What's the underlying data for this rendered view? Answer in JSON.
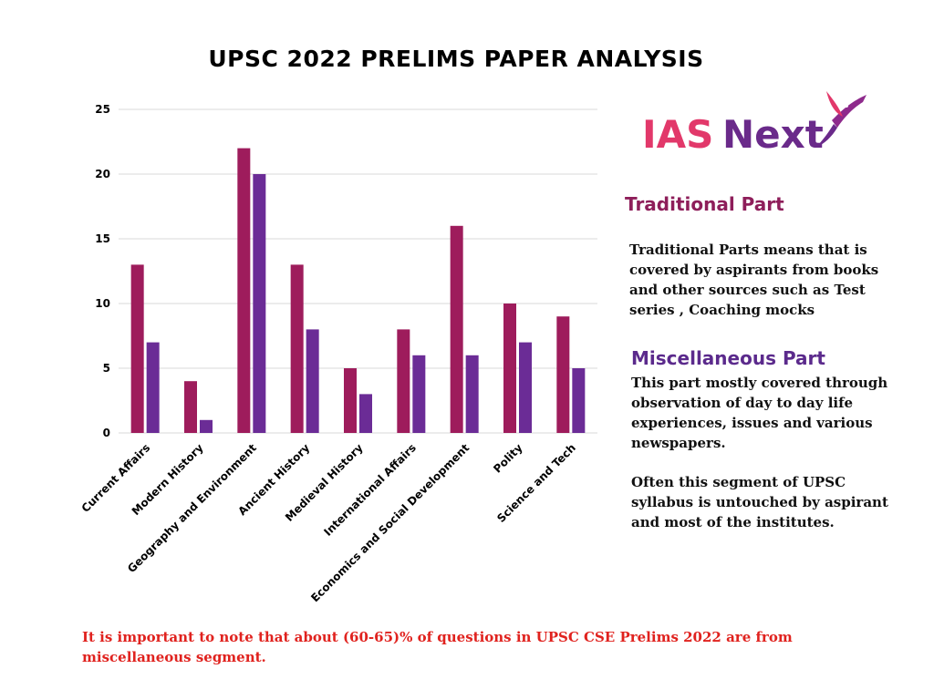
{
  "title": "UPSC 2022 PRELIMS PAPER ANALYSIS",
  "logo": {
    "part1": "IAS",
    "part2": "Next",
    "icon": "hummingbird-icon"
  },
  "traditional": {
    "heading": "Traditional Part",
    "text": "Traditional Parts means  that is covered by aspirants from books and other sources such as Test series  , Coaching mocks"
  },
  "miscellaneous": {
    "heading": "Miscellaneous Part",
    "text1": "This part mostly covered through observation of day to day life experiences, issues and various newspapers.",
    "text2": "Often this segment of UPSC syllabus is untouched  by aspirant and most of the institutes."
  },
  "footnote": "It is important to note that about (60-65)% of questions in UPSC CSE Prelims 2022 are  from miscellaneous segment.",
  "colors": {
    "series1": "#9e1c5c",
    "series2": "#6b2c96",
    "grid": "#d9d9d9",
    "logo_ias": "#e2386a",
    "logo_next": "#6a2a8a"
  },
  "chart_data": {
    "type": "bar",
    "categories": [
      "Current Affairs",
      "Modern History",
      "Geography and Environment",
      "Ancient History",
      "Medieval History",
      "International Affairs",
      "Economics and Social Development",
      "Polity",
      "Science and Tech"
    ],
    "series": [
      {
        "values": [
          13,
          4,
          22,
          13,
          5,
          8,
          16,
          10,
          9
        ]
      },
      {
        "values": [
          7,
          1,
          20,
          8,
          3,
          6,
          6,
          7,
          5
        ]
      }
    ],
    "yticks": [
      "0",
      "5",
      "10",
      "15",
      "20",
      "25"
    ],
    "ylim": [
      0,
      25
    ],
    "grid": true,
    "xlabel": "",
    "ylabel": ""
  }
}
